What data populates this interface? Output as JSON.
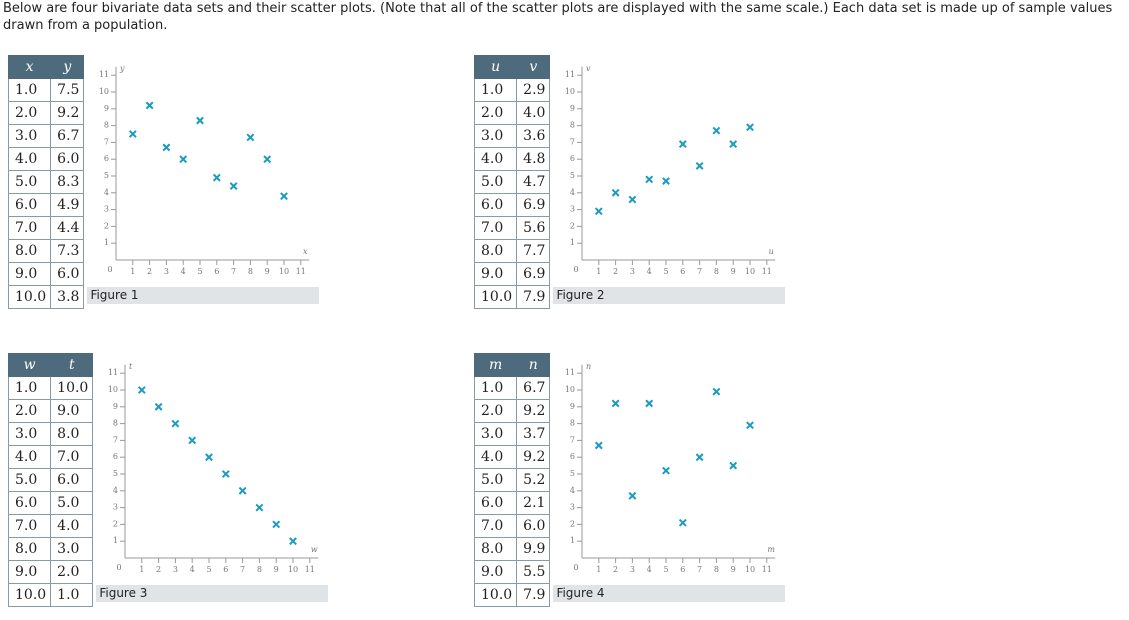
{
  "intro": "Below are four bivariate data sets and their scatter plots. (Note that all of the scatter plots are displayed with the same scale.) Each data set is made up of sample values drawn from a population.",
  "figures": [
    {
      "table": {
        "columns": [
          "x",
          "y"
        ],
        "rows": [
          [
            "1.0",
            "7.5"
          ],
          [
            "2.0",
            "9.2"
          ],
          [
            "3.0",
            "6.7"
          ],
          [
            "4.0",
            "6.0"
          ],
          [
            "5.0",
            "8.3"
          ],
          [
            "6.0",
            "4.9"
          ],
          [
            "7.0",
            "4.4"
          ],
          [
            "8.0",
            "7.3"
          ],
          [
            "9.0",
            "6.0"
          ],
          [
            "10.0",
            "3.8"
          ]
        ]
      },
      "caption": "Figure 1",
      "chart": {
        "type": "scatter",
        "x_label": "x",
        "y_label": "y",
        "origin": 0,
        "color": "#1a9bbf",
        "x": [
          1,
          2,
          3,
          4,
          5,
          6,
          7,
          8,
          9,
          10
        ],
        "y": [
          7.5,
          9.2,
          6.7,
          6.0,
          8.3,
          4.9,
          4.4,
          7.3,
          6.0,
          3.8
        ],
        "xlim": [
          0,
          11.5
        ],
        "ylim": [
          0,
          11.5
        ],
        "xticks": [
          1,
          2,
          3,
          4,
          5,
          6,
          7,
          8,
          9,
          10,
          11
        ],
        "yticks": [
          1,
          2,
          3,
          4,
          5,
          6,
          7,
          8,
          9,
          10,
          11
        ]
      }
    },
    {
      "table": {
        "columns": [
          "u",
          "v"
        ],
        "rows": [
          [
            "1.0",
            "2.9"
          ],
          [
            "2.0",
            "4.0"
          ],
          [
            "3.0",
            "3.6"
          ],
          [
            "4.0",
            "4.8"
          ],
          [
            "5.0",
            "4.7"
          ],
          [
            "6.0",
            "6.9"
          ],
          [
            "7.0",
            "5.6"
          ],
          [
            "8.0",
            "7.7"
          ],
          [
            "9.0",
            "6.9"
          ],
          [
            "10.0",
            "7.9"
          ]
        ]
      },
      "caption": "Figure 2",
      "chart": {
        "type": "scatter",
        "x_label": "u",
        "y_label": "v",
        "origin": 0,
        "color": "#1a9bbf",
        "x": [
          1,
          2,
          3,
          4,
          5,
          6,
          7,
          8,
          9,
          10
        ],
        "y": [
          2.9,
          4.0,
          3.6,
          4.8,
          4.7,
          6.9,
          5.6,
          7.7,
          6.9,
          7.9
        ],
        "xlim": [
          0,
          11.5
        ],
        "ylim": [
          0,
          11.5
        ],
        "xticks": [
          1,
          2,
          3,
          4,
          5,
          6,
          7,
          8,
          9,
          10,
          11
        ],
        "yticks": [
          1,
          2,
          3,
          4,
          5,
          6,
          7,
          8,
          9,
          10,
          11
        ]
      }
    },
    {
      "table": {
        "columns": [
          "w",
          "t"
        ],
        "rows": [
          [
            "1.0",
            "10.0"
          ],
          [
            "2.0",
            "9.0"
          ],
          [
            "3.0",
            "8.0"
          ],
          [
            "4.0",
            "7.0"
          ],
          [
            "5.0",
            "6.0"
          ],
          [
            "6.0",
            "5.0"
          ],
          [
            "7.0",
            "4.0"
          ],
          [
            "8.0",
            "3.0"
          ],
          [
            "9.0",
            "2.0"
          ],
          [
            "10.0",
            "1.0"
          ]
        ]
      },
      "caption": "Figure 3",
      "chart": {
        "type": "scatter",
        "x_label": "w",
        "y_label": "t",
        "origin": 0,
        "color": "#1a9bbf",
        "x": [
          1,
          2,
          3,
          4,
          5,
          6,
          7,
          8,
          9,
          10
        ],
        "y": [
          10.0,
          9.0,
          8.0,
          7.0,
          6.0,
          5.0,
          4.0,
          3.0,
          2.0,
          1.0
        ],
        "xlim": [
          0,
          11.5
        ],
        "ylim": [
          0,
          11.5
        ],
        "xticks": [
          1,
          2,
          3,
          4,
          5,
          6,
          7,
          8,
          9,
          10,
          11
        ],
        "yticks": [
          1,
          2,
          3,
          4,
          5,
          6,
          7,
          8,
          9,
          10,
          11
        ]
      }
    },
    {
      "table": {
        "columns": [
          "m",
          "n"
        ],
        "rows": [
          [
            "1.0",
            "6.7"
          ],
          [
            "2.0",
            "9.2"
          ],
          [
            "3.0",
            "3.7"
          ],
          [
            "4.0",
            "9.2"
          ],
          [
            "5.0",
            "5.2"
          ],
          [
            "6.0",
            "2.1"
          ],
          [
            "7.0",
            "6.0"
          ],
          [
            "8.0",
            "9.9"
          ],
          [
            "9.0",
            "5.5"
          ],
          [
            "10.0",
            "7.9"
          ]
        ]
      },
      "caption": "Figure 4",
      "chart": {
        "type": "scatter",
        "x_label": "m",
        "y_label": "n",
        "origin": 0,
        "color": "#1a9bbf",
        "x": [
          1,
          2,
          3,
          4,
          5,
          6,
          7,
          8,
          9,
          10
        ],
        "y": [
          6.7,
          9.2,
          3.7,
          9.2,
          5.2,
          2.1,
          6.0,
          9.9,
          5.5,
          7.9
        ],
        "xlim": [
          0,
          11.5
        ],
        "ylim": [
          0,
          11.5
        ],
        "xticks": [
          1,
          2,
          3,
          4,
          5,
          6,
          7,
          8,
          9,
          10,
          11
        ],
        "yticks": [
          1,
          2,
          3,
          4,
          5,
          6,
          7,
          8,
          9,
          10,
          11
        ]
      }
    }
  ]
}
